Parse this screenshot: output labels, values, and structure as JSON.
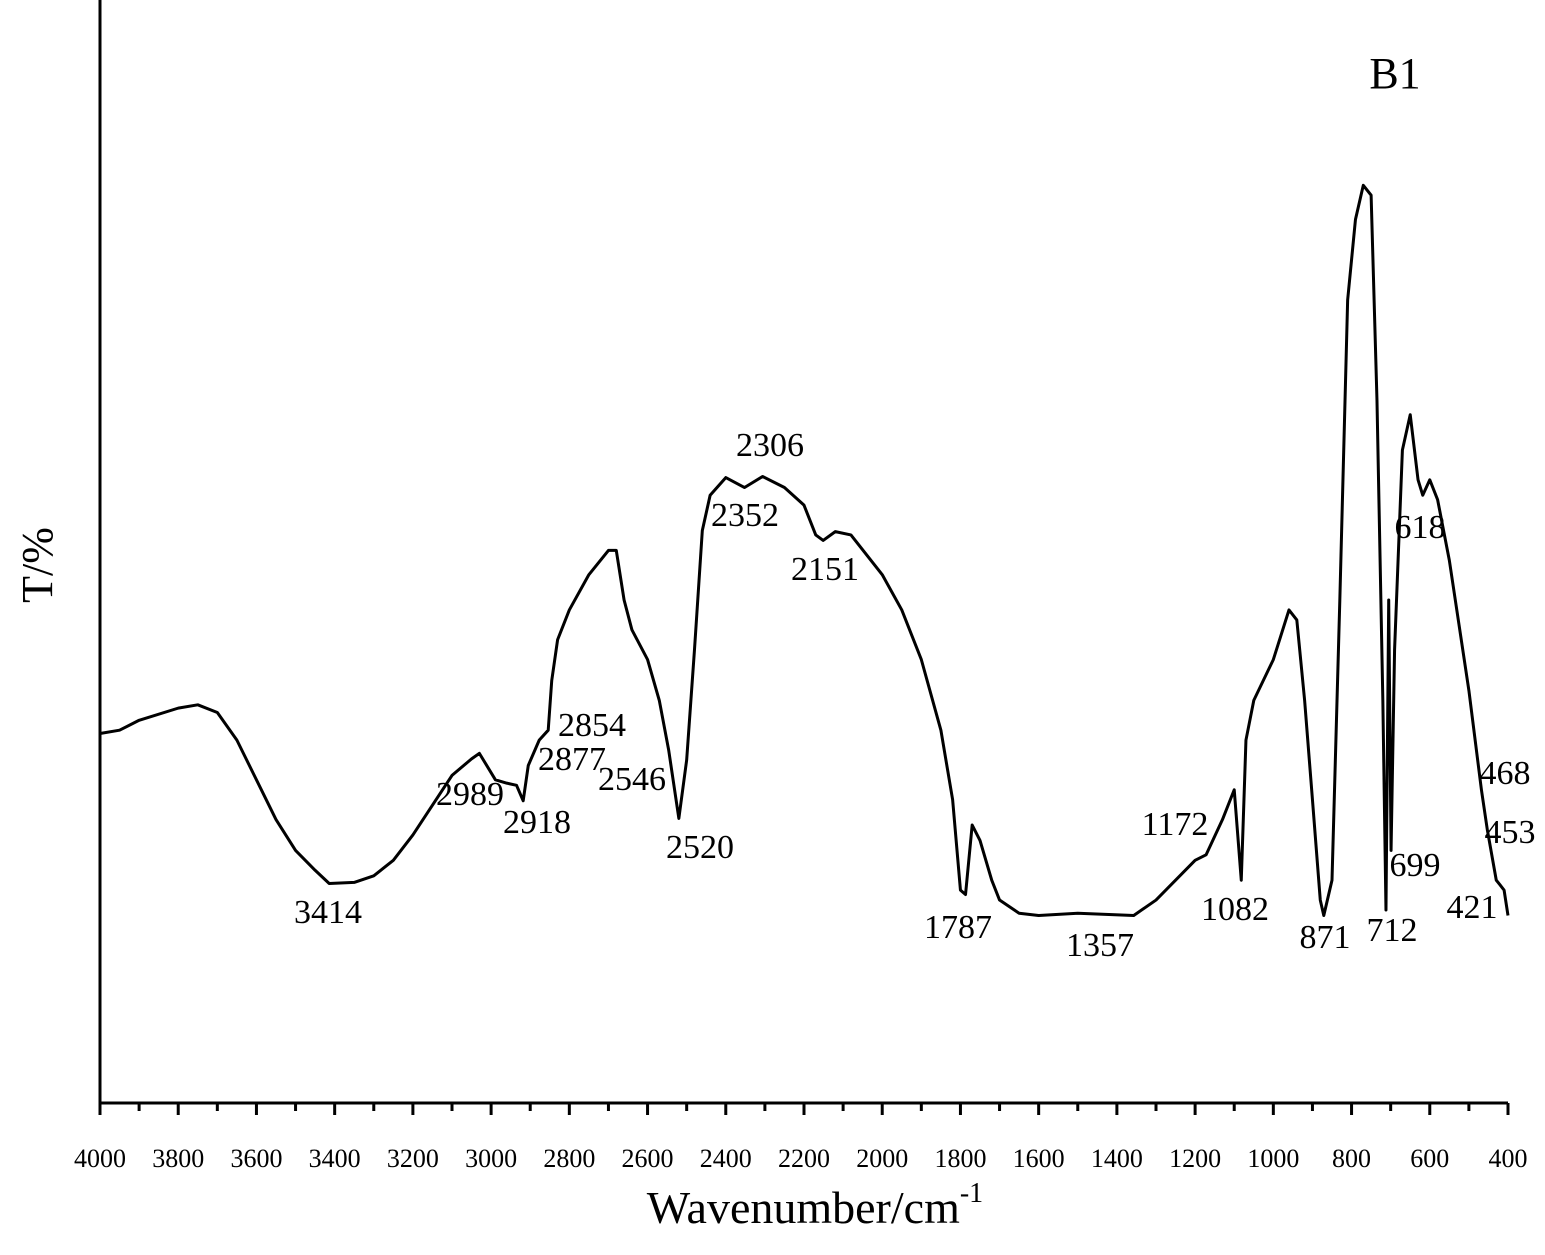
{
  "chart_data": {
    "type": "line",
    "title": "B1",
    "xlabel": "Wavenumber/cm",
    "xlabel_superscript": "-1",
    "ylabel": "T/%",
    "xlim": [
      4000,
      400
    ],
    "ylim": [
      0,
      100
    ],
    "xticks": [
      4000,
      3800,
      3600,
      3400,
      3200,
      3000,
      2800,
      2600,
      2400,
      2200,
      2000,
      1800,
      1600,
      1400,
      1200,
      1000,
      800,
      600,
      400
    ],
    "xminor_ticks": [
      3900,
      3700,
      3500,
      3300,
      3100,
      2900,
      2700,
      2500,
      2300,
      2100,
      1900,
      1700,
      1500,
      1300,
      1100,
      900,
      700,
      500
    ],
    "peak_labels": [
      "2306",
      "2352",
      "2151",
      "2854",
      "2877",
      "2989",
      "2546",
      "2918",
      "2520",
      "3414",
      "1787",
      "1357",
      "1172",
      "1082",
      "871",
      "712",
      "699",
      "618",
      "468",
      "453",
      "421"
    ],
    "series": [
      {
        "color": "#000000",
        "x": [
          4000,
          3950,
          3900,
          3800,
          3750,
          3700,
          3650,
          3600,
          3550,
          3500,
          3450,
          3414,
          3350,
          3300,
          3250,
          3200,
          3150,
          3100,
          3050,
          3030,
          2989,
          2960,
          2935,
          2918,
          2905,
          2877,
          2854,
          2845,
          2830,
          2800,
          2750,
          2700,
          2680,
          2660,
          2640,
          2600,
          2570,
          2546,
          2520,
          2500,
          2480,
          2460,
          2440,
          2400,
          2352,
          2306,
          2250,
          2200,
          2170,
          2151,
          2120,
          2080,
          2000,
          1950,
          1900,
          1850,
          1820,
          1800,
          1787,
          1770,
          1750,
          1720,
          1700,
          1650,
          1600,
          1500,
          1357,
          1300,
          1250,
          1200,
          1172,
          1130,
          1100,
          1082,
          1070,
          1050,
          1000,
          960,
          940,
          920,
          900,
          880,
          871,
          850,
          830,
          810,
          790,
          770,
          750,
          735,
          720,
          712,
          705,
          699,
          690,
          670,
          650,
          630,
          618,
          600,
          580,
          550,
          500,
          468,
          453,
          430,
          421,
          410,
          400
        ],
        "values": [
          33.5,
          33.8,
          34.7,
          35.8,
          36.1,
          35.4,
          32.9,
          29.3,
          25.7,
          22.9,
          21.1,
          19.9,
          20.0,
          20.6,
          22.0,
          24.3,
          27.0,
          29.7,
          31.2,
          31.7,
          29.3,
          29.0,
          28.8,
          27.4,
          30.6,
          32.9,
          33.8,
          38.3,
          42.0,
          44.7,
          47.9,
          50.1,
          50.1,
          45.6,
          42.9,
          40.2,
          36.5,
          32.0,
          25.8,
          31.1,
          41.1,
          51.9,
          55.1,
          56.7,
          55.8,
          56.8,
          55.8,
          54.2,
          51.5,
          51.0,
          51.8,
          51.5,
          47.9,
          44.7,
          40.2,
          33.8,
          27.5,
          19.3,
          18.9,
          25.2,
          23.8,
          20.2,
          18.4,
          17.2,
          17.0,
          17.2,
          17.0,
          18.4,
          20.2,
          22.0,
          22.5,
          25.7,
          28.4,
          20.2,
          32.9,
          36.5,
          40.2,
          44.7,
          43.8,
          36.5,
          27.5,
          18.4,
          17.0,
          20.2,
          45.6,
          72.8,
          80.1,
          83.2,
          82.3,
          63.7,
          36.5,
          17.5,
          45.6,
          22.9,
          41.1,
          59.2,
          62.4,
          56.5,
          55.1,
          56.5,
          54.7,
          49.2,
          37.4,
          28.4,
          24.8,
          20.2,
          19.8,
          19.3,
          17.0
        ]
      }
    ]
  }
}
